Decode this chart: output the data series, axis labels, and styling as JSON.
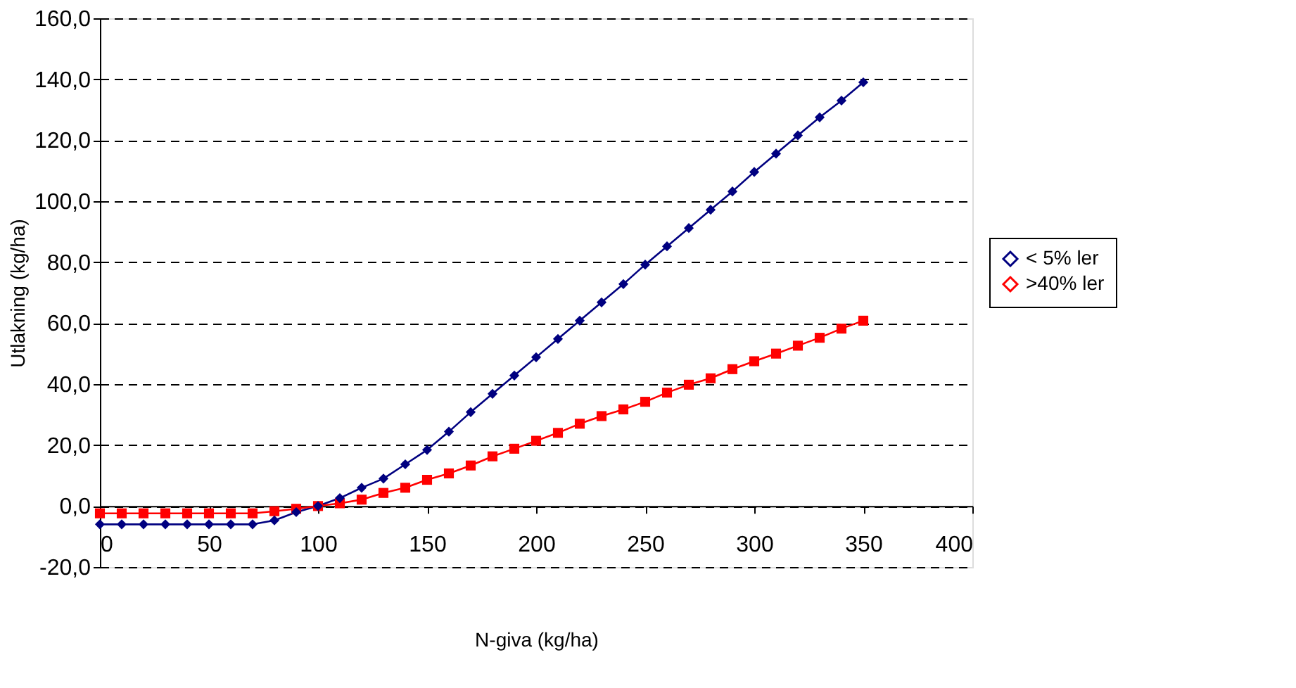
{
  "chart_data": {
    "type": "line",
    "xlabel": "N-giva (kg/ha)",
    "ylabel": "Utlakning (kg/ha)",
    "x": [
      0,
      10,
      20,
      30,
      40,
      50,
      60,
      70,
      80,
      90,
      100,
      110,
      120,
      130,
      140,
      150,
      160,
      170,
      180,
      190,
      200,
      210,
      220,
      230,
      240,
      250,
      260,
      270,
      280,
      290,
      300,
      310,
      320,
      330,
      340,
      350
    ],
    "series": [
      {
        "name": "< 5% ler",
        "color": "#000080",
        "marker": "diamond",
        "values": [
          -6,
          -6,
          -6,
          -6,
          -6,
          -6,
          -6,
          -6,
          -4.7,
          -2,
          0,
          2.6,
          6,
          9,
          13.7,
          18.4,
          24.4,
          30.8,
          36.8,
          42.8,
          48.8,
          54.8,
          60.8,
          66.8,
          72.8,
          79.2,
          85.2,
          91.2,
          97.2,
          103.2,
          109.6,
          115.6,
          121.6,
          127.5,
          133,
          139
        ]
      },
      {
        "name": ">40% ler",
        "color": "#ff0000",
        "marker": "square",
        "values": [
          -2.4,
          -2.4,
          -2.4,
          -2.4,
          -2.4,
          -2.4,
          -2.4,
          -2.4,
          -1.7,
          -0.9,
          0,
          0.9,
          2.1,
          4.3,
          6,
          8.6,
          10.7,
          13.3,
          16.3,
          18.8,
          21.4,
          24,
          27,
          29.5,
          31.7,
          34.2,
          37.2,
          39.8,
          41.9,
          44.9,
          47.5,
          50,
          52.6,
          55.2,
          58.2,
          60.8
        ]
      }
    ],
    "xlim": [
      0,
      400
    ],
    "xticks": [
      0,
      50,
      100,
      150,
      200,
      250,
      300,
      350,
      400
    ],
    "ylim": [
      -20,
      160
    ],
    "yticks": [
      {
        "value": -20,
        "label": "-20,0"
      },
      {
        "value": 0,
        "label": "0,0"
      },
      {
        "value": 20,
        "label": "20,0"
      },
      {
        "value": 40,
        "label": "40,0"
      },
      {
        "value": 60,
        "label": "60,0"
      },
      {
        "value": 80,
        "label": "80,0"
      },
      {
        "value": 100,
        "label": "100,0"
      },
      {
        "value": 120,
        "label": "120,0"
      },
      {
        "value": 140,
        "label": "140,0"
      },
      {
        "value": 160,
        "label": "160,0"
      }
    ],
    "grid": "y",
    "legend": "right",
    "line_style": "solid"
  }
}
